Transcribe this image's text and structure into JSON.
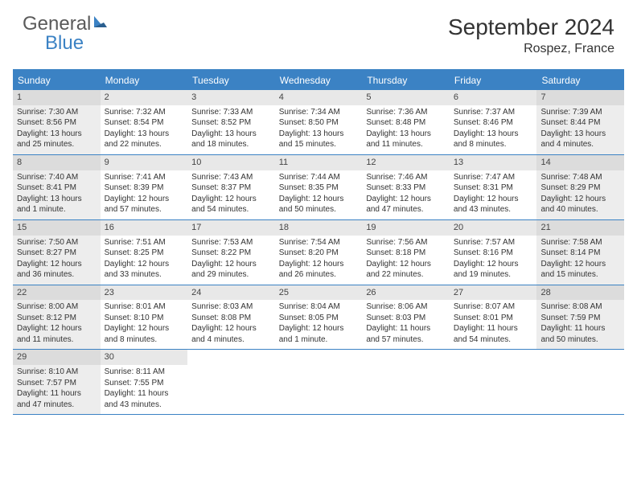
{
  "logo": {
    "text1": "General",
    "text2": "Blue"
  },
  "title": "September 2024",
  "location": "Rospez, France",
  "colors": {
    "accent": "#3b82c4",
    "shaded_bg": "#ededed",
    "daynum_bg": "#e8e8e8",
    "daynum_bg_shaded": "#dcdcdc",
    "text": "#333333"
  },
  "weekdays": [
    "Sunday",
    "Monday",
    "Tuesday",
    "Wednesday",
    "Thursday",
    "Friday",
    "Saturday"
  ],
  "weeks": [
    [
      {
        "n": "1",
        "shaded": true,
        "sunrise": "7:30 AM",
        "sunset": "8:56 PM",
        "dl1": "13 hours",
        "dl2": "and 25 minutes."
      },
      {
        "n": "2",
        "sunrise": "7:32 AM",
        "sunset": "8:54 PM",
        "dl1": "13 hours",
        "dl2": "and 22 minutes."
      },
      {
        "n": "3",
        "sunrise": "7:33 AM",
        "sunset": "8:52 PM",
        "dl1": "13 hours",
        "dl2": "and 18 minutes."
      },
      {
        "n": "4",
        "sunrise": "7:34 AM",
        "sunset": "8:50 PM",
        "dl1": "13 hours",
        "dl2": "and 15 minutes."
      },
      {
        "n": "5",
        "sunrise": "7:36 AM",
        "sunset": "8:48 PM",
        "dl1": "13 hours",
        "dl2": "and 11 minutes."
      },
      {
        "n": "6",
        "sunrise": "7:37 AM",
        "sunset": "8:46 PM",
        "dl1": "13 hours",
        "dl2": "and 8 minutes."
      },
      {
        "n": "7",
        "shaded": true,
        "sunrise": "7:39 AM",
        "sunset": "8:44 PM",
        "dl1": "13 hours",
        "dl2": "and 4 minutes."
      }
    ],
    [
      {
        "n": "8",
        "shaded": true,
        "sunrise": "7:40 AM",
        "sunset": "8:41 PM",
        "dl1": "13 hours",
        "dl2": "and 1 minute."
      },
      {
        "n": "9",
        "sunrise": "7:41 AM",
        "sunset": "8:39 PM",
        "dl1": "12 hours",
        "dl2": "and 57 minutes."
      },
      {
        "n": "10",
        "sunrise": "7:43 AM",
        "sunset": "8:37 PM",
        "dl1": "12 hours",
        "dl2": "and 54 minutes."
      },
      {
        "n": "11",
        "sunrise": "7:44 AM",
        "sunset": "8:35 PM",
        "dl1": "12 hours",
        "dl2": "and 50 minutes."
      },
      {
        "n": "12",
        "sunrise": "7:46 AM",
        "sunset": "8:33 PM",
        "dl1": "12 hours",
        "dl2": "and 47 minutes."
      },
      {
        "n": "13",
        "sunrise": "7:47 AM",
        "sunset": "8:31 PM",
        "dl1": "12 hours",
        "dl2": "and 43 minutes."
      },
      {
        "n": "14",
        "shaded": true,
        "sunrise": "7:48 AM",
        "sunset": "8:29 PM",
        "dl1": "12 hours",
        "dl2": "and 40 minutes."
      }
    ],
    [
      {
        "n": "15",
        "shaded": true,
        "sunrise": "7:50 AM",
        "sunset": "8:27 PM",
        "dl1": "12 hours",
        "dl2": "and 36 minutes."
      },
      {
        "n": "16",
        "sunrise": "7:51 AM",
        "sunset": "8:25 PM",
        "dl1": "12 hours",
        "dl2": "and 33 minutes."
      },
      {
        "n": "17",
        "sunrise": "7:53 AM",
        "sunset": "8:22 PM",
        "dl1": "12 hours",
        "dl2": "and 29 minutes."
      },
      {
        "n": "18",
        "sunrise": "7:54 AM",
        "sunset": "8:20 PM",
        "dl1": "12 hours",
        "dl2": "and 26 minutes."
      },
      {
        "n": "19",
        "sunrise": "7:56 AM",
        "sunset": "8:18 PM",
        "dl1": "12 hours",
        "dl2": "and 22 minutes."
      },
      {
        "n": "20",
        "sunrise": "7:57 AM",
        "sunset": "8:16 PM",
        "dl1": "12 hours",
        "dl2": "and 19 minutes."
      },
      {
        "n": "21",
        "shaded": true,
        "sunrise": "7:58 AM",
        "sunset": "8:14 PM",
        "dl1": "12 hours",
        "dl2": "and 15 minutes."
      }
    ],
    [
      {
        "n": "22",
        "shaded": true,
        "sunrise": "8:00 AM",
        "sunset": "8:12 PM",
        "dl1": "12 hours",
        "dl2": "and 11 minutes."
      },
      {
        "n": "23",
        "sunrise": "8:01 AM",
        "sunset": "8:10 PM",
        "dl1": "12 hours",
        "dl2": "and 8 minutes."
      },
      {
        "n": "24",
        "sunrise": "8:03 AM",
        "sunset": "8:08 PM",
        "dl1": "12 hours",
        "dl2": "and 4 minutes."
      },
      {
        "n": "25",
        "sunrise": "8:04 AM",
        "sunset": "8:05 PM",
        "dl1": "12 hours",
        "dl2": "and 1 minute."
      },
      {
        "n": "26",
        "sunrise": "8:06 AM",
        "sunset": "8:03 PM",
        "dl1": "11 hours",
        "dl2": "and 57 minutes."
      },
      {
        "n": "27",
        "sunrise": "8:07 AM",
        "sunset": "8:01 PM",
        "dl1": "11 hours",
        "dl2": "and 54 minutes."
      },
      {
        "n": "28",
        "shaded": true,
        "sunrise": "8:08 AM",
        "sunset": "7:59 PM",
        "dl1": "11 hours",
        "dl2": "and 50 minutes."
      }
    ],
    [
      {
        "n": "29",
        "shaded": true,
        "sunrise": "8:10 AM",
        "sunset": "7:57 PM",
        "dl1": "11 hours",
        "dl2": "and 47 minutes."
      },
      {
        "n": "30",
        "sunrise": "8:11 AM",
        "sunset": "7:55 PM",
        "dl1": "11 hours",
        "dl2": "and 43 minutes."
      },
      {
        "empty": true
      },
      {
        "empty": true
      },
      {
        "empty": true
      },
      {
        "empty": true
      },
      {
        "empty": true
      }
    ]
  ],
  "labels": {
    "sunrise_prefix": "Sunrise: ",
    "sunset_prefix": "Sunset: ",
    "daylight_prefix": "Daylight: "
  }
}
